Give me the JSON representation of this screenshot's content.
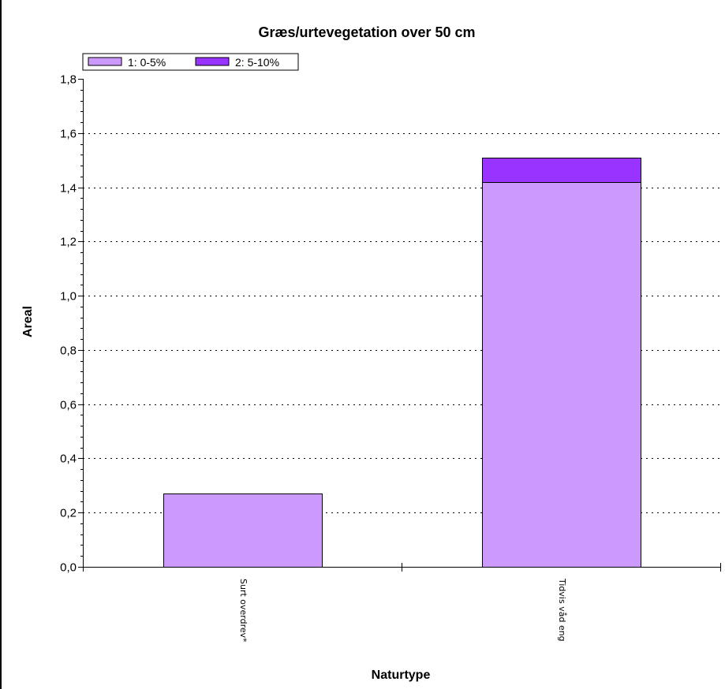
{
  "chart_data": {
    "type": "bar",
    "stacked": true,
    "title": "Græs/urtevegetation over 50 cm",
    "xlabel": "Naturtype",
    "ylabel": "Areal",
    "categories": [
      "Surt overdrev*",
      "Tidvis våd eng"
    ],
    "series": [
      {
        "name": "1: 0-5%",
        "values": [
          0.27,
          1.42
        ],
        "color": "#cc99ff"
      },
      {
        "name": "2: 5-10%",
        "values": [
          0,
          0.09
        ],
        "color": "#9933ff"
      }
    ],
    "ylim": [
      0,
      1.8
    ],
    "yticks": [
      "0,0",
      "0,2",
      "0,4",
      "0,6",
      "0,8",
      "1,0",
      "1,2",
      "1,4",
      "1,6",
      "1,8"
    ],
    "grid": true,
    "legend_position": "top-left"
  }
}
